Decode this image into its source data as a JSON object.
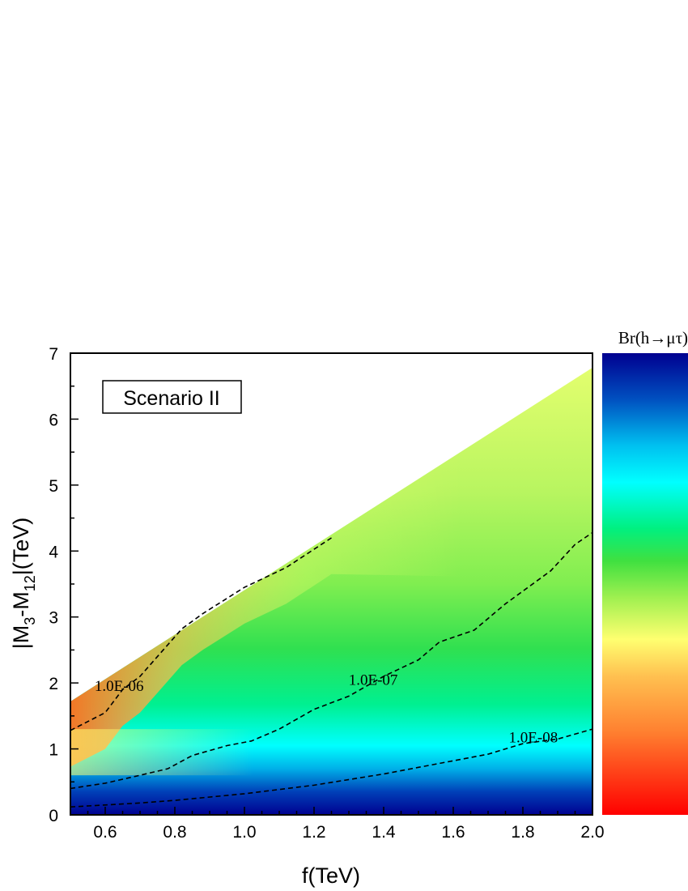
{
  "chart_data": {
    "type": "heatmap",
    "title": "",
    "xlabel": "f(TeV)",
    "ylabel_parts": [
      "|M",
      "3",
      "-M",
      "12",
      "|(TeV)"
    ],
    "xlim": [
      0.5,
      2.0
    ],
    "ylim": [
      0,
      7
    ],
    "x_ticks": [
      "0.6",
      "0.8",
      "1.0",
      "1.2",
      "1.4",
      "1.6",
      "1.8",
      "2.0"
    ],
    "y_ticks": [
      "0",
      "1",
      "2",
      "3",
      "4",
      "5",
      "6",
      "7"
    ],
    "annotation_box": "Scenario II",
    "colorbar_title": "Br(h→μτ)",
    "domain_upper_boundary": [
      [
        0.5,
        1.72
      ],
      [
        2.0,
        6.78
      ]
    ],
    "contours": [
      {
        "label": "1.0E-06",
        "label_at": [
          0.64,
          1.88
        ],
        "points": [
          [
            0.5,
            1.28
          ],
          [
            0.6,
            1.55
          ],
          [
            0.65,
            1.9
          ],
          [
            0.7,
            2.1
          ],
          [
            0.75,
            2.4
          ],
          [
            0.82,
            2.82
          ],
          [
            0.88,
            3.05
          ],
          [
            1.0,
            3.45
          ],
          [
            1.12,
            3.75
          ],
          [
            1.25,
            4.2
          ]
        ]
      },
      {
        "label": "1.0E-07",
        "label_at": [
          1.37,
          1.97
        ],
        "points": [
          [
            0.5,
            0.4
          ],
          [
            0.6,
            0.48
          ],
          [
            0.7,
            0.6
          ],
          [
            0.78,
            0.7
          ],
          [
            0.85,
            0.9
          ],
          [
            0.95,
            1.05
          ],
          [
            1.02,
            1.12
          ],
          [
            1.1,
            1.3
          ],
          [
            1.2,
            1.6
          ],
          [
            1.3,
            1.8
          ],
          [
            1.4,
            2.1
          ],
          [
            1.5,
            2.35
          ],
          [
            1.56,
            2.62
          ],
          [
            1.66,
            2.8
          ],
          [
            1.75,
            3.2
          ],
          [
            1.88,
            3.7
          ],
          [
            1.95,
            4.1
          ],
          [
            2.0,
            4.28
          ]
        ]
      },
      {
        "label": "1.0E-08",
        "label_at": [
          1.83,
          1.1
        ],
        "points": [
          [
            0.5,
            0.12
          ],
          [
            0.6,
            0.15
          ],
          [
            0.7,
            0.18
          ],
          [
            0.8,
            0.22
          ],
          [
            1.0,
            0.32
          ],
          [
            1.2,
            0.45
          ],
          [
            1.4,
            0.62
          ],
          [
            1.6,
            0.82
          ],
          [
            1.7,
            0.92
          ],
          [
            1.8,
            1.08
          ],
          [
            1.9,
            1.15
          ],
          [
            2.0,
            1.3
          ]
        ]
      }
    ]
  }
}
